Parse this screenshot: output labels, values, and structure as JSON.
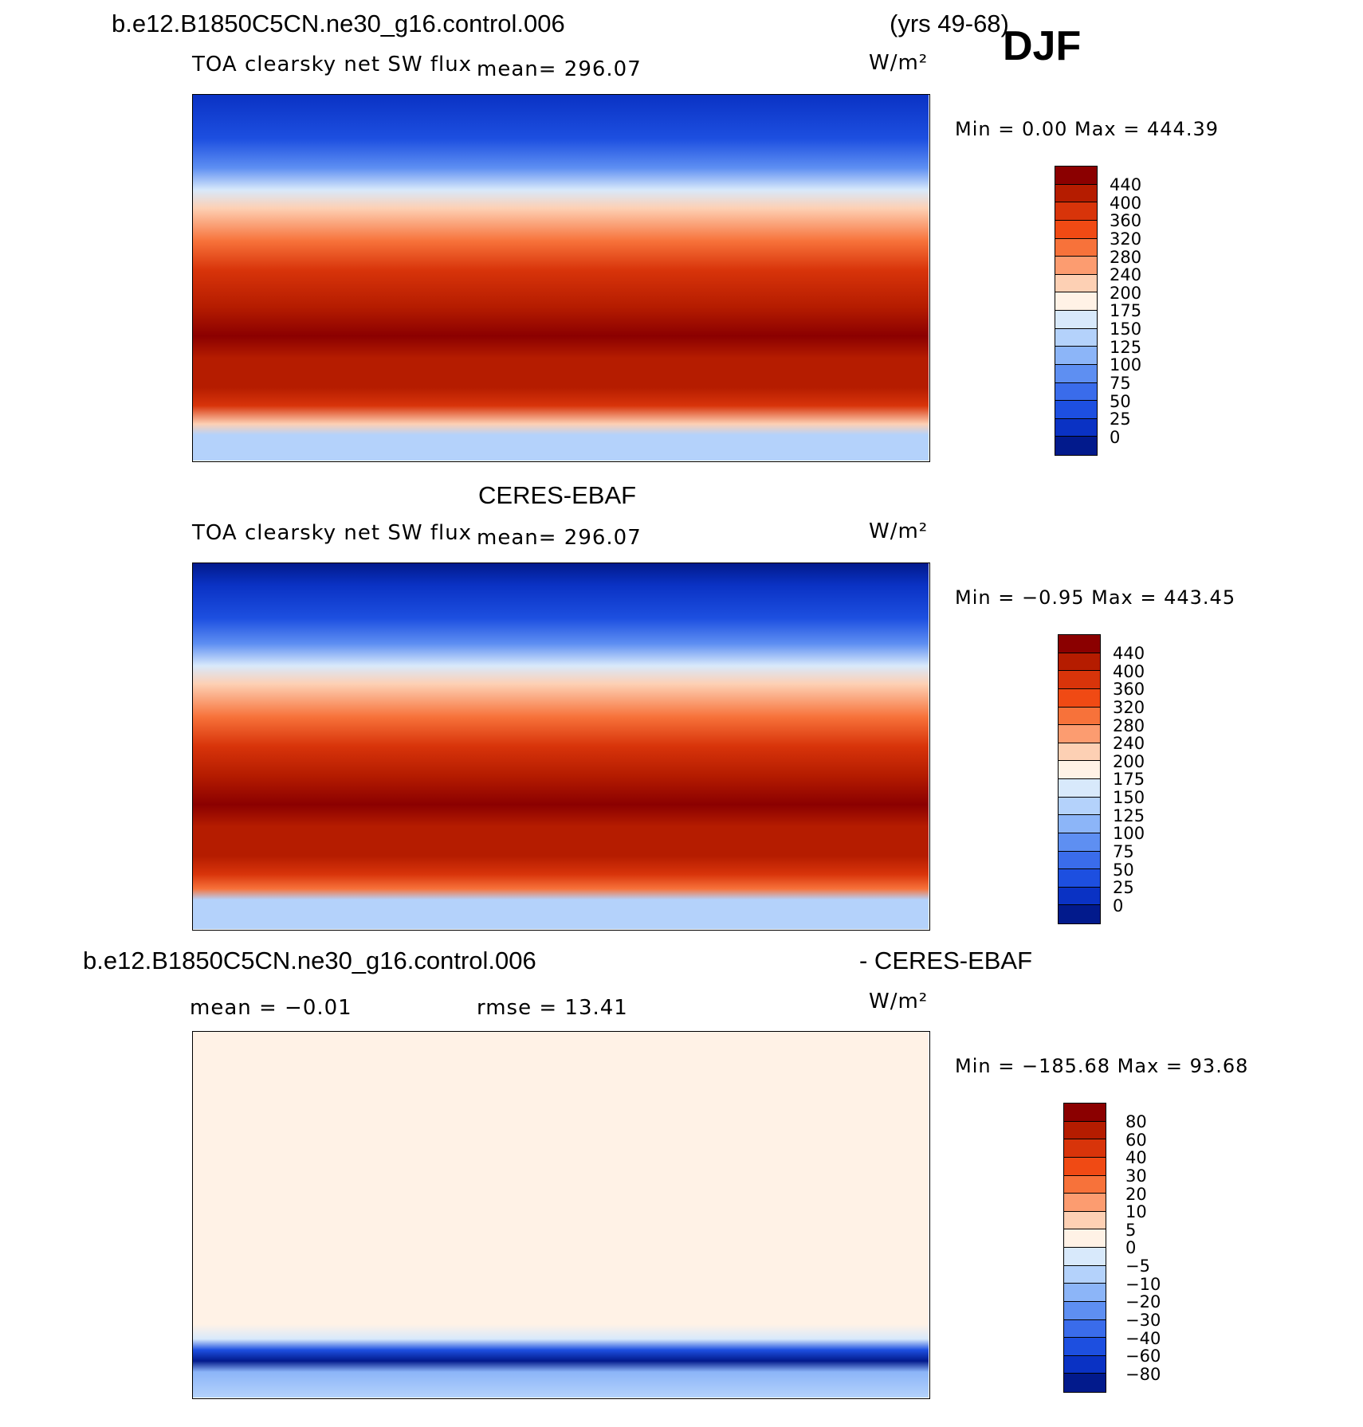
{
  "header": {
    "case_name": "b.e12.B1850C5CN.ne30_g16.control.006",
    "years": "(yrs 49-68)",
    "season": "DJF"
  },
  "panels": [
    {
      "id": "model",
      "title": "",
      "variable": "TOA clearsky net SW flux",
      "mean_text": "mean=  296.07",
      "units": "W/m²",
      "minmax": "Min  =     0.00  Max  =  444.39",
      "colorbar_labels": [
        "440",
        "400",
        "360",
        "320",
        "280",
        "240",
        "200",
        "175",
        "150",
        "125",
        "100",
        "75",
        "50",
        "25",
        "0"
      ],
      "colorbar_colors": [
        "#8b0000",
        "#b51c00",
        "#d8340a",
        "#f04a14",
        "#f7723a",
        "#fc9c70",
        "#fdd0b4",
        "#fff2e6",
        "#d8e9fb",
        "#b4d2fb",
        "#8cb5f8",
        "#5e8ff2",
        "#3a6ceb",
        "#1d4fe0",
        "#0a32c4",
        "#021a8c"
      ]
    },
    {
      "id": "obs",
      "title": "CERES-EBAF",
      "variable": "TOA clearsky net SW flux",
      "mean_text": "mean=  296.07",
      "units": "W/m²",
      "minmax": "Min  =   −0.95  Max  =  443.45",
      "colorbar_labels": [
        "440",
        "400",
        "360",
        "320",
        "280",
        "240",
        "200",
        "175",
        "150",
        "125",
        "100",
        "75",
        "50",
        "25",
        "0"
      ],
      "colorbar_colors": [
        "#8b0000",
        "#b51c00",
        "#d8340a",
        "#f04a14",
        "#f7723a",
        "#fc9c70",
        "#fdd0b4",
        "#fff2e6",
        "#d8e9fb",
        "#b4d2fb",
        "#8cb5f8",
        "#5e8ff2",
        "#3a6ceb",
        "#1d4fe0",
        "#0a32c4",
        "#021a8c"
      ]
    },
    {
      "id": "diff",
      "title_left": "b.e12.B1850C5CN.ne30_g16.control.006",
      "title_right": "- CERES-EBAF",
      "mean_text": "mean  =    −0.01",
      "rmse_text": "rmse  =    13.41",
      "units": "W/m²",
      "minmax": "Min  =  −185.68  Max  =    93.68",
      "colorbar_labels": [
        "80",
        "60",
        "40",
        "30",
        "20",
        "10",
        "5",
        "0",
        "−5",
        "−10",
        "−20",
        "−30",
        "−40",
        "−60",
        "−80"
      ],
      "colorbar_colors": [
        "#8b0000",
        "#b51c00",
        "#d8340a",
        "#f04a14",
        "#f7723a",
        "#fc9c70",
        "#fdd0b4",
        "#fff2e6",
        "#d8e9fb",
        "#b4d2fb",
        "#8cb5f8",
        "#5e8ff2",
        "#3a6ceb",
        "#1d4fe0",
        "#0a32c4",
        "#021a8c"
      ]
    }
  ],
  "chart_data": [
    {
      "type": "heatmap",
      "title": "TOA clearsky net SW flux (b.e12.B1850C5CN.ne30_g16.control.006, DJF)",
      "units": "W/m²",
      "mean": 296.07,
      "min": 0.0,
      "max": 444.39,
      "levels": [
        0,
        25,
        50,
        75,
        100,
        125,
        150,
        175,
        200,
        240,
        280,
        320,
        360,
        400,
        440
      ]
    },
    {
      "type": "heatmap",
      "title": "TOA clearsky net SW flux (CERES-EBAF, DJF)",
      "units": "W/m²",
      "mean": 296.07,
      "min": -0.95,
      "max": 443.45,
      "levels": [
        0,
        25,
        50,
        75,
        100,
        125,
        150,
        175,
        200,
        240,
        280,
        320,
        360,
        400,
        440
      ]
    },
    {
      "type": "heatmap",
      "title": "b.e12.B1850C5CN.ne30_g16.control.006 - CERES-EBAF",
      "units": "W/m²",
      "mean": -0.01,
      "rmse": 13.41,
      "min": -185.68,
      "max": 93.68,
      "levels": [
        -80,
        -60,
        -40,
        -30,
        -20,
        -10,
        -5,
        0,
        5,
        10,
        20,
        30,
        40,
        60,
        80
      ]
    }
  ]
}
